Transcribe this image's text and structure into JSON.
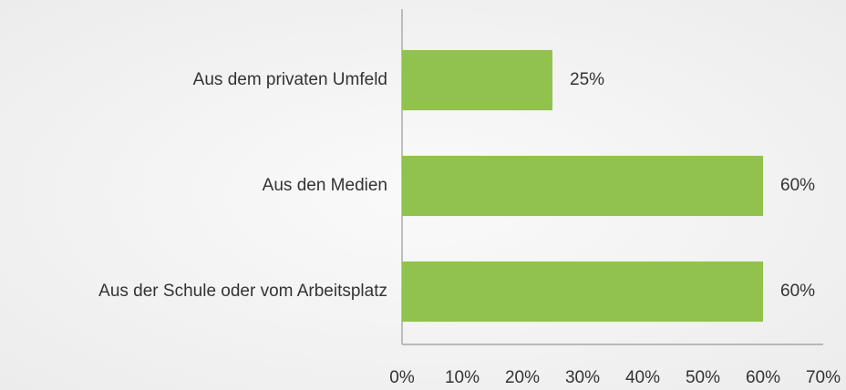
{
  "chart_data": {
    "type": "bar",
    "orientation": "horizontal",
    "categories": [
      "Aus dem privaten Umfeld",
      "Aus den Medien",
      "Aus der Schule oder vom Arbeitsplatz"
    ],
    "values": [
      25,
      60,
      60
    ],
    "value_labels": [
      "25%",
      "60%",
      "60%"
    ],
    "color": "#92c24e",
    "xlim": [
      0,
      70
    ],
    "xticks": [
      {
        "value": 0,
        "label": "0%"
      },
      {
        "value": 10,
        "label": "10%"
      },
      {
        "value": 20,
        "label": "20%"
      },
      {
        "value": 30,
        "label": "30%"
      },
      {
        "value": 40,
        "label": "40%"
      },
      {
        "value": 50,
        "label": "50%"
      },
      {
        "value": 60,
        "label": "60%"
      },
      {
        "value": 70,
        "label": "70%"
      }
    ],
    "grid": false
  }
}
